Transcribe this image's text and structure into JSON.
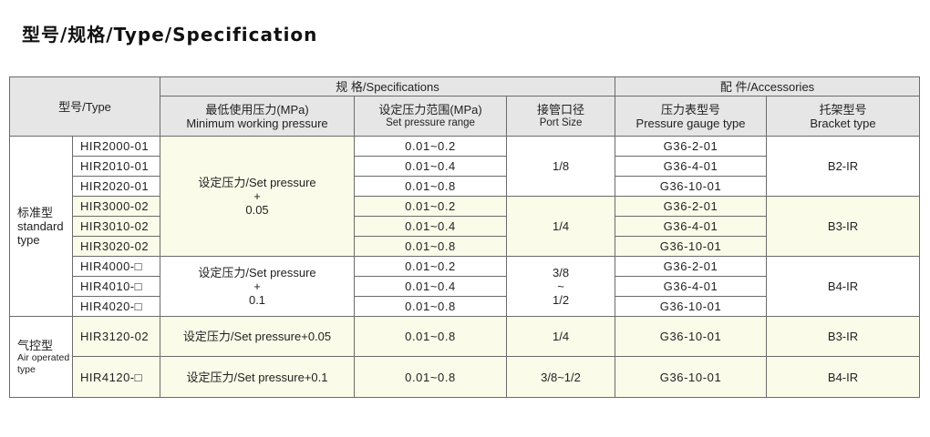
{
  "title": "型号/规格/Type/Specification",
  "header": {
    "type": "型号/Type",
    "specifications": "规 格/Specifications",
    "accessories": "配 件/Accessories",
    "min_pressure_cn": "最低使用压力(MPa)",
    "min_pressure_en": "Minimum working pressure",
    "set_range_cn": "设定压力范围(MPa)",
    "set_range_en": "Set pressure range",
    "port_cn": "接管口径",
    "port_en": "Port Size",
    "gauge_cn": "压力表型号",
    "gauge_en": "Pressure gauge type",
    "bracket_cn": "托架型号",
    "bracket_en": "Bracket type"
  },
  "categories": {
    "standard_cn": "标准型",
    "standard_en_1": "standard",
    "standard_en_2": "type",
    "air_cn": "气控型",
    "air_en_1": "Air operated",
    "air_en_2": "type"
  },
  "groups": {
    "g1_min_1": "设定压力/Set pressure",
    "g1_min_2": "+",
    "g1_min_3": "0.05",
    "g2_min_1": "设定压力/Set pressure",
    "g2_min_2": "+",
    "g2_min_3": "0.1",
    "port_a": "1/8",
    "port_b": "1/4",
    "port_c_1": "3/8",
    "port_c_2": "~",
    "port_c_3": "1/2",
    "bracket_a": "B2-IR",
    "bracket_b": "B3-IR",
    "bracket_c": "B4-IR"
  },
  "rows": [
    {
      "model": "HIR2000-01",
      "range": "0.01~0.2",
      "gauge": "G36-2-01"
    },
    {
      "model": "HIR2010-01",
      "range": "0.01~0.4",
      "gauge": "G36-4-01"
    },
    {
      "model": "HIR2020-01",
      "range": "0.01~0.8",
      "gauge": "G36-10-01"
    },
    {
      "model": "HIR3000-02",
      "range": "0.01~0.2",
      "gauge": "G36-2-01"
    },
    {
      "model": "HIR3010-02",
      "range": "0.01~0.4",
      "gauge": "G36-4-01"
    },
    {
      "model": "HIR3020-02",
      "range": "0.01~0.8",
      "gauge": "G36-10-01"
    },
    {
      "model": "HIR4000-□",
      "range": "0.01~0.2",
      "gauge": "G36-2-01"
    },
    {
      "model": "HIR4010-□",
      "range": "0.01~0.4",
      "gauge": "G36-4-01"
    },
    {
      "model": "HIR4020-□",
      "range": "0.01~0.8",
      "gauge": "G36-10-01"
    }
  ],
  "air_rows": [
    {
      "model": "HIR3120-02",
      "min": "设定压力/Set pressure+0.05",
      "range": "0.01~0.8",
      "port": "1/4",
      "gauge": "G36-10-01",
      "bracket": "B3-IR"
    },
    {
      "model": "HIR4120-□",
      "min": "设定压力/Set pressure+0.1",
      "range": "0.01~0.8",
      "port": "3/8~1/2",
      "gauge": "G36-10-01",
      "bracket": "B4-IR"
    }
  ]
}
